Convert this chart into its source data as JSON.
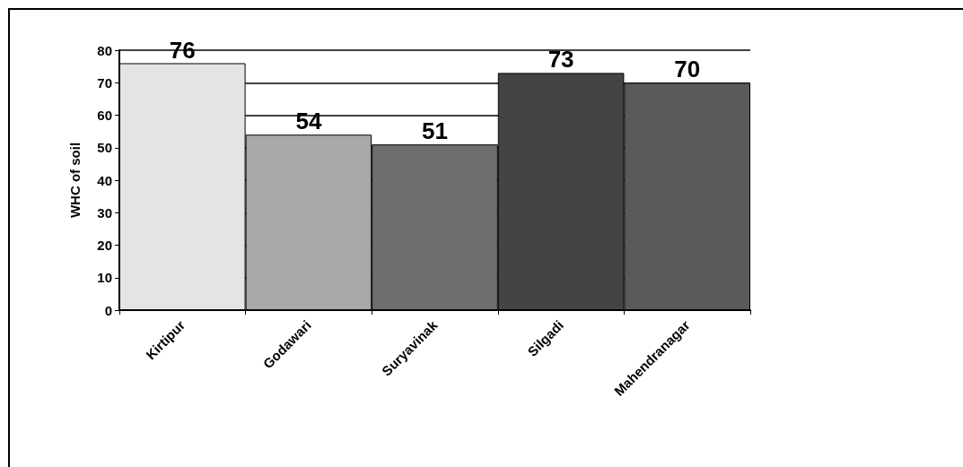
{
  "chart_data": {
    "type": "bar",
    "ylabel": "WHC of soil",
    "categories": [
      "Kirtipur",
      "Godawari",
      "Suryavinak",
      "Silgadi",
      "Mahendranagar"
    ],
    "values": [
      76,
      54,
      51,
      73,
      70
    ],
    "colors": [
      "#e4e4e4",
      "#a8a8a8",
      "#6e6e6e",
      "#444444",
      "#5a5a5a"
    ],
    "ylim": [
      0,
      80
    ],
    "yticks": [
      0,
      10,
      20,
      30,
      40,
      50,
      60,
      70,
      80
    ],
    "grid": "y",
    "data_labels": true
  }
}
